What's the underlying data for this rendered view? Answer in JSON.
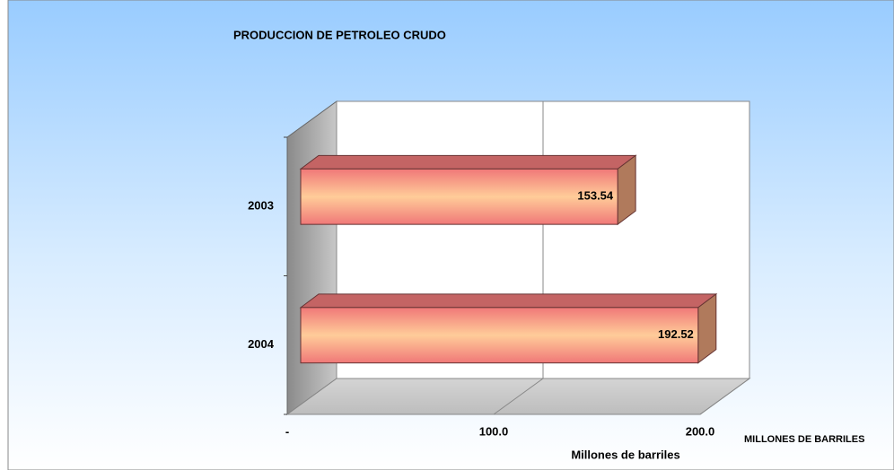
{
  "chart_data": {
    "type": "bar3d_horizontal",
    "title": "PRODUCCION DE PETROLEO CRUDO",
    "categories": [
      "2003",
      "2004"
    ],
    "values": [
      153.54,
      192.52
    ],
    "color": "#f08080",
    "xlim": [
      0,
      200
    ],
    "xticks": [
      {
        "value": 0,
        "label": "-"
      },
      {
        "value": 100,
        "label": "100.0"
      },
      {
        "value": 200,
        "label": "200.0"
      }
    ],
    "xlabel": "Millones de barriles",
    "annotation": "MILLONES DE BARRILES",
    "grid": true
  }
}
